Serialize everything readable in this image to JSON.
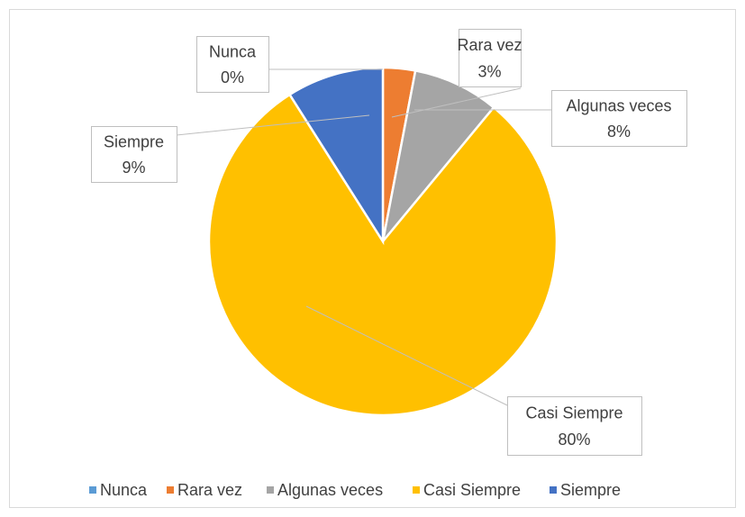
{
  "chart_data": {
    "type": "pie",
    "categories": [
      "Nunca",
      "Rara vez",
      "Algunas veces",
      "Casi Siempre",
      "Siempre"
    ],
    "values": [
      0,
      3,
      8,
      80,
      9
    ],
    "value_labels": [
      "0%",
      "3%",
      "8%",
      "80%",
      "9%"
    ],
    "colors": [
      "#5b9bd5",
      "#ed7d31",
      "#a5a5a5",
      "#ffc000",
      "#4472c4"
    ],
    "legend": "bottom"
  }
}
